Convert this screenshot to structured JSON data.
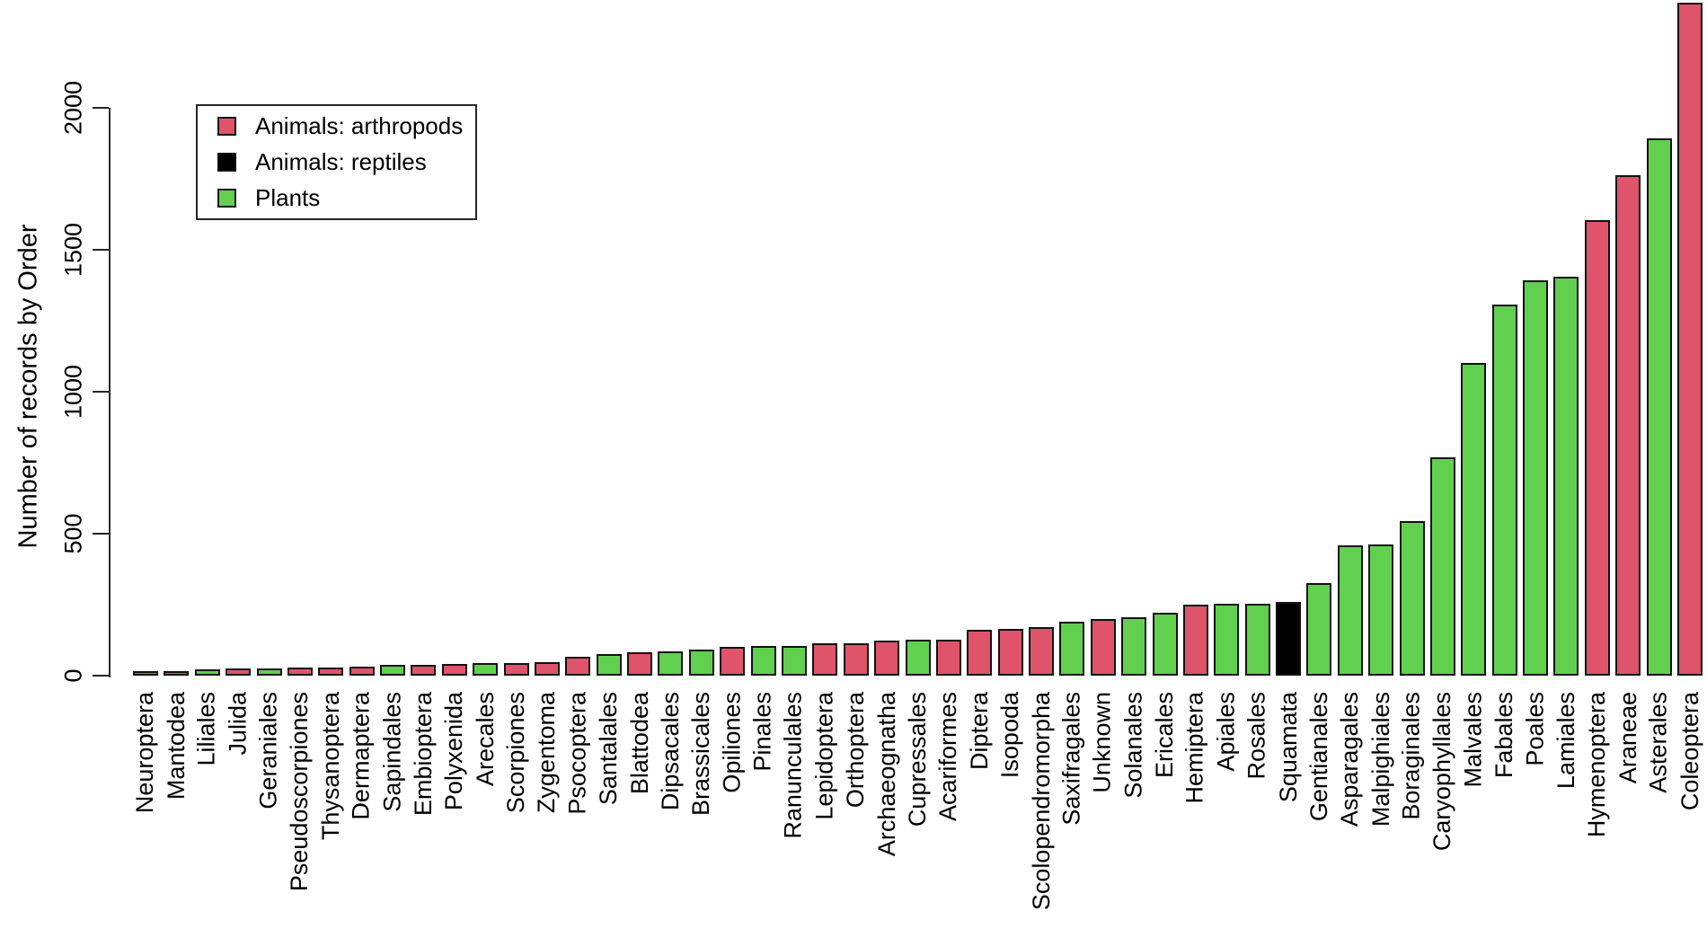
{
  "figure": {
    "kind": "r-style-barplot",
    "background": "#ffffff"
  },
  "chart_data": {
    "type": "bar",
    "title": "",
    "xlabel": "",
    "ylabel": "Number of records by Order",
    "ylim": [
      0,
      2370
    ],
    "yticks": [
      0,
      500,
      1000,
      1500,
      2000
    ],
    "grid": false,
    "legend": {
      "position": "top-left",
      "items": [
        {
          "label": "Animals: arthropods",
          "key": "arthropod",
          "color": "#DF536B"
        },
        {
          "label": "Animals: reptiles",
          "key": "reptile",
          "color": "#000000"
        },
        {
          "label": "Plants",
          "key": "plant",
          "color": "#61D04F"
        }
      ]
    },
    "bar_colors": {
      "arthropod": "#DF536B",
      "reptile": "#000000",
      "plant": "#61D04F"
    },
    "categories": [
      "Neuroptera",
      "Mantodea",
      "Liliales",
      "Julida",
      "Geraniales",
      "Pseudoscorpiones",
      "Thysanoptera",
      "Dermaptera",
      "Sapindales",
      "Embioptera",
      "Polyxenida",
      "Arecales",
      "Scorpiones",
      "Zygentoma",
      "Psocoptera",
      "Santalales",
      "Blattodea",
      "Dipsacales",
      "Brassicales",
      "Opiliones",
      "Pinales",
      "Ranunculales",
      "Lepidoptera",
      "Orthoptera",
      "Archaeognatha",
      "Cupressales",
      "Acariformes",
      "Diptera",
      "Isopoda",
      "Scolopendromorpha",
      "Saxifragales",
      "Unknown",
      "Solanales",
      "Ericales",
      "Hemiptera",
      "Apiales",
      "Rosales",
      "Squamata",
      "Gentianales",
      "Asparagales",
      "Malpighiales",
      "Boraginales",
      "Caryophyllales",
      "Malvales",
      "Fabales",
      "Poales",
      "Lamiales",
      "Hymenoptera",
      "Araneae",
      "Asterales",
      "Coleoptera"
    ],
    "values": [
      15,
      17,
      22,
      24,
      26,
      29,
      30,
      31,
      38,
      39,
      42,
      43,
      45,
      47,
      68,
      75,
      82,
      84,
      91,
      102,
      104,
      105,
      113,
      114,
      123,
      126,
      128,
      161,
      165,
      171,
      189,
      199,
      206,
      221,
      249,
      252,
      254,
      258,
      327,
      460,
      461,
      543,
      770,
      1102,
      1308,
      1392,
      1406,
      1603,
      1764,
      1893,
      2370
    ],
    "groups": [
      "arthropod",
      "arthropod",
      "plant",
      "arthropod",
      "plant",
      "arthropod",
      "arthropod",
      "arthropod",
      "plant",
      "arthropod",
      "arthropod",
      "plant",
      "arthropod",
      "arthropod",
      "arthropod",
      "plant",
      "arthropod",
      "plant",
      "plant",
      "arthropod",
      "plant",
      "plant",
      "arthropod",
      "arthropod",
      "arthropod",
      "plant",
      "arthropod",
      "arthropod",
      "arthropod",
      "arthropod",
      "plant",
      "arthropod",
      "plant",
      "plant",
      "arthropod",
      "plant",
      "plant",
      "reptile",
      "plant",
      "plant",
      "plant",
      "plant",
      "plant",
      "plant",
      "plant",
      "plant",
      "plant",
      "arthropod",
      "arthropod",
      "plant",
      "arthropod"
    ]
  }
}
